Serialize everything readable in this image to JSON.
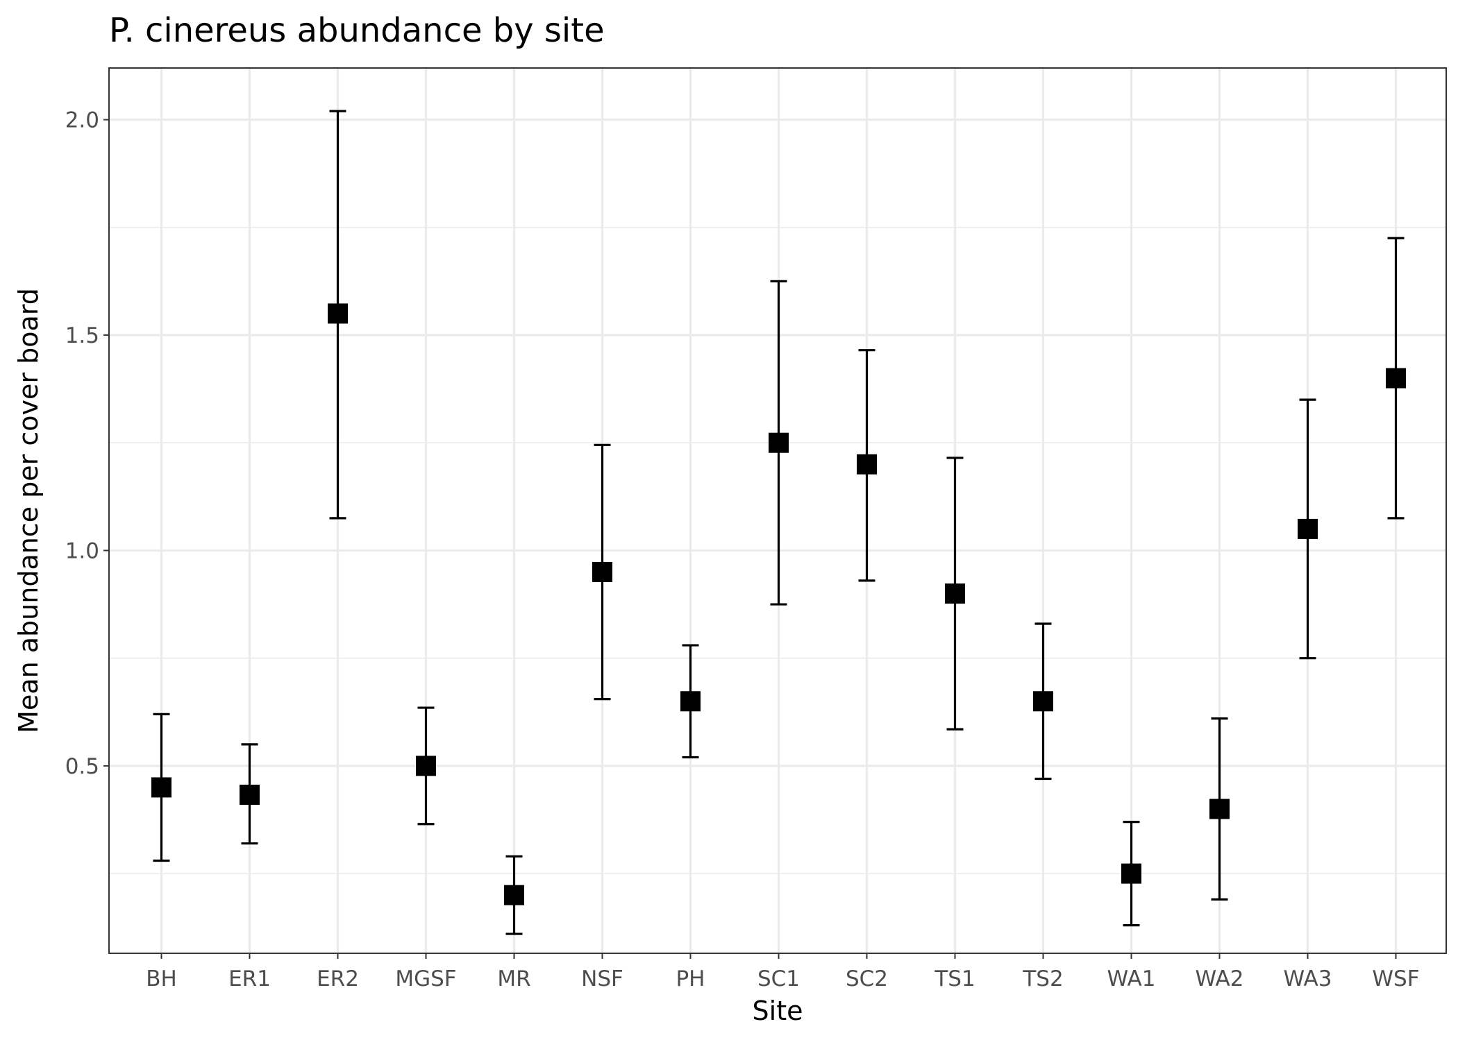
{
  "chart_data": {
    "type": "errorbar",
    "title": "P. cinereus abundance by site",
    "xlabel": "Site",
    "ylabel": "Mean abundance per cover board",
    "categories": [
      "BH",
      "ER1",
      "ER2",
      "MGSF",
      "MR",
      "NSF",
      "PH",
      "SC1",
      "SC2",
      "TS1",
      "TS2",
      "WA1",
      "WA2",
      "WA3",
      "WSF"
    ],
    "series": [
      {
        "means": [
          0.45,
          0.433,
          1.55,
          0.5,
          0.2,
          0.95,
          0.65,
          1.25,
          1.2,
          0.9,
          0.65,
          0.25,
          0.4,
          1.05,
          1.4
        ],
        "lower": [
          0.28,
          0.32,
          1.075,
          0.365,
          0.11,
          0.655,
          0.52,
          0.875,
          0.93,
          0.585,
          0.47,
          0.13,
          0.19,
          0.75,
          1.075
        ],
        "upper": [
          0.62,
          0.55,
          2.02,
          0.635,
          0.29,
          1.245,
          0.78,
          1.625,
          1.465,
          1.215,
          0.83,
          0.37,
          0.61,
          1.35,
          1.725
        ]
      }
    ],
    "y_ticks": [
      "0.5",
      "1.0",
      "1.5",
      "2.0"
    ],
    "ylim": [
      0.065,
      2.12
    ],
    "grid": true,
    "legend": "none",
    "colors": {
      "point": "#000000",
      "grid": "#ebebeb",
      "panel_border": "#333333",
      "tick_label": "#4d4d4d"
    }
  }
}
